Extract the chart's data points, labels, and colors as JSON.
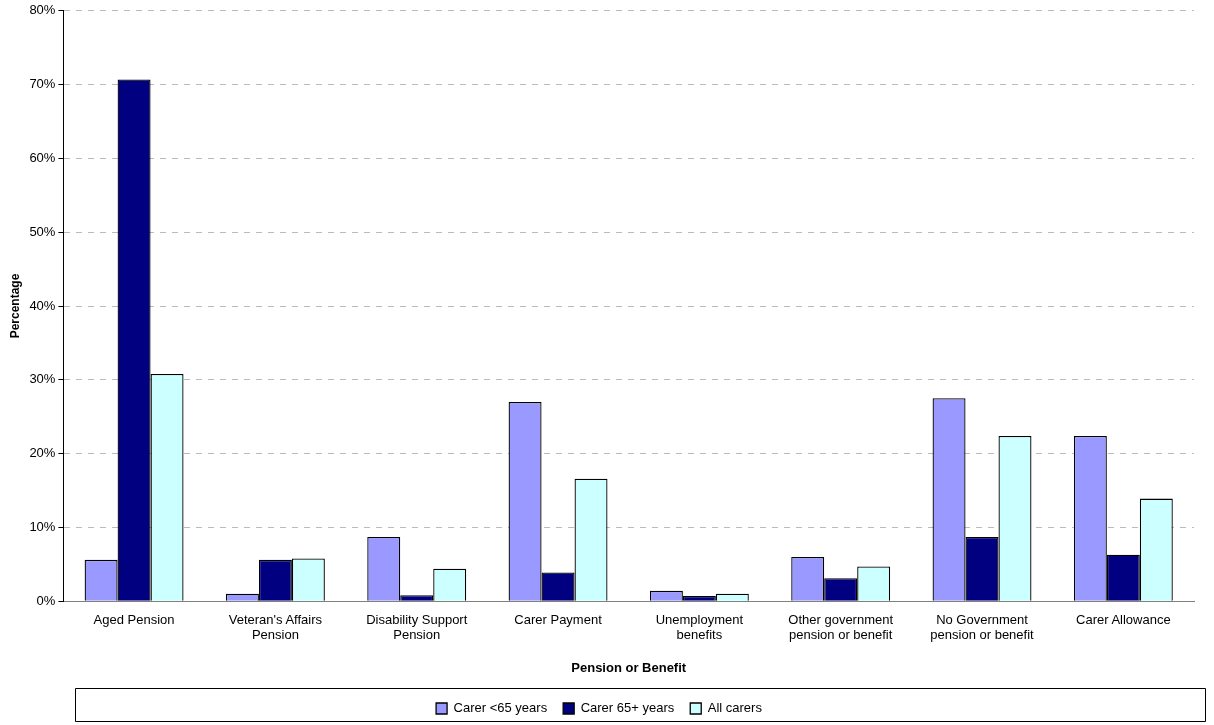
{
  "chart_data": {
    "type": "bar",
    "xlabel": "Pension or Benefit",
    "ylabel": "Percentage",
    "categories": [
      "Aged Pension",
      "Veteran's Affairs Pension",
      "Disability Support Pension",
      "Carer Payment",
      "Unemployment benefits",
      "Other government pension or benefit",
      "No Government pension or benefit",
      "Carer Allowance"
    ],
    "series": [
      {
        "name": "Carer <65 years",
        "color": "#9999ff",
        "values": [
          5.6,
          1.0,
          8.7,
          27.0,
          1.4,
          6.0,
          27.5,
          22.4
        ]
      },
      {
        "name": "Carer 65+ years",
        "color": "#000080",
        "values": [
          70.7,
          5.6,
          0.8,
          3.9,
          0.7,
          3.1,
          8.7,
          6.3
        ]
      },
      {
        "name": "All carers",
        "color": "#ccffff",
        "values": [
          30.8,
          5.8,
          4.4,
          16.6,
          1.0,
          4.7,
          22.4,
          13.9
        ]
      }
    ],
    "ylim": [
      0,
      80
    ],
    "yticks": [
      {
        "value": 0,
        "label": "0%"
      },
      {
        "value": 10,
        "label": "10%"
      },
      {
        "value": 20,
        "label": "20%"
      },
      {
        "value": 30,
        "label": "30%"
      },
      {
        "value": 40,
        "label": "40%"
      },
      {
        "value": 50,
        "label": "50%"
      },
      {
        "value": 60,
        "label": "60%"
      },
      {
        "value": 70,
        "label": "70%"
      },
      {
        "value": 80,
        "label": "80%"
      }
    ],
    "grid": "y",
    "legend": "bottom"
  }
}
